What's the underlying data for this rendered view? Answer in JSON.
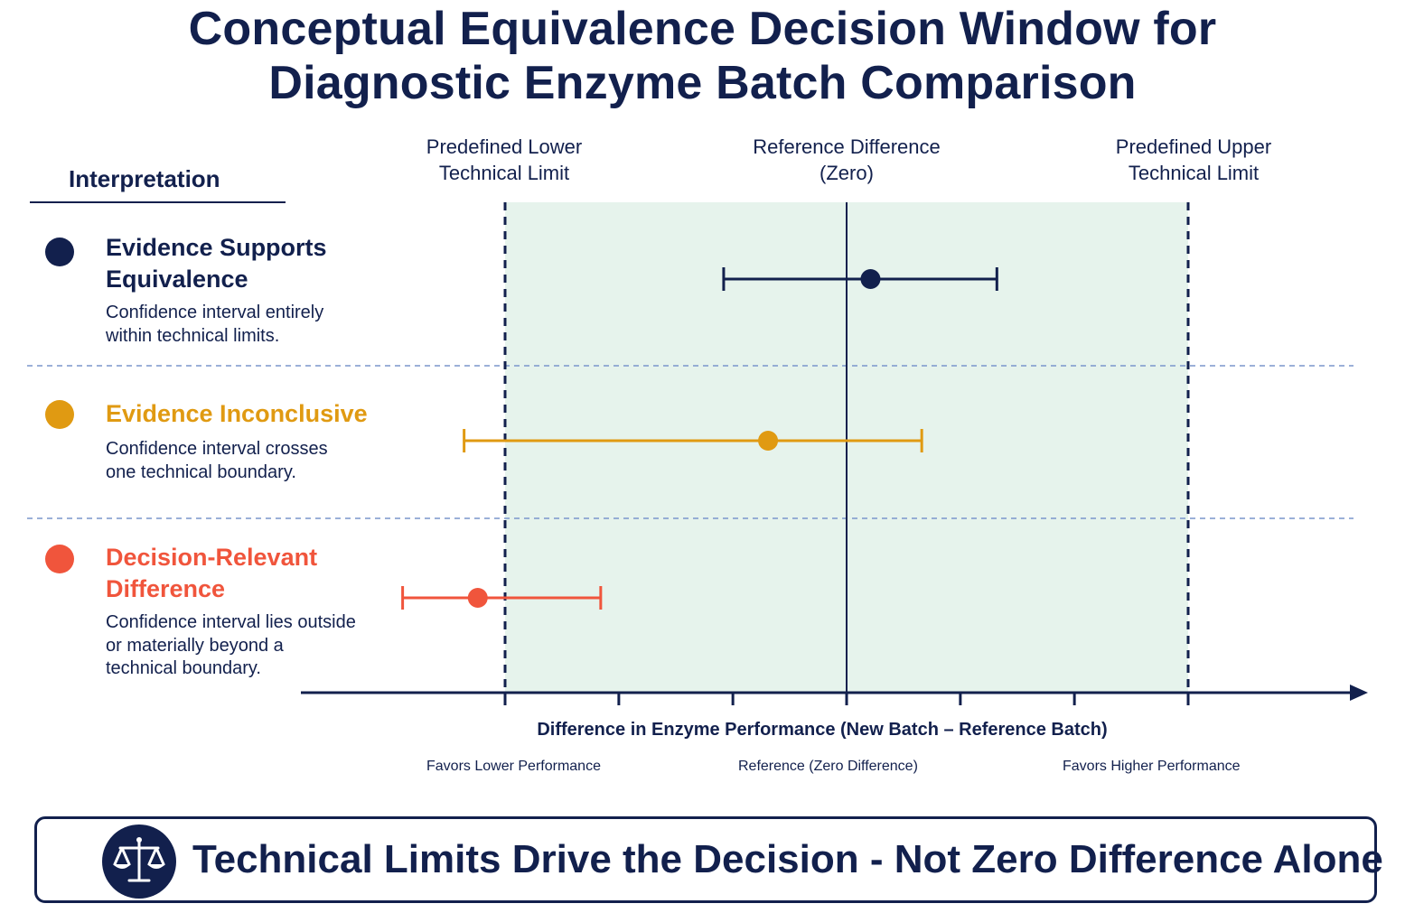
{
  "title_line1": "Conceptual Equivalence Decision Window for",
  "title_line2": "Diagnostic Enzyme Batch Comparison",
  "column_headers": {
    "lower_limit": [
      "Predefined Lower",
      "Technical Limit"
    ],
    "reference": [
      "Reference Difference",
      "(Zero)"
    ],
    "upper_limit": [
      "Predefined Upper",
      "Technical Limit"
    ]
  },
  "interpretation": {
    "heading": "Interpretation",
    "items": [
      {
        "title_lines": [
          "Evidence Supports",
          "Equivalence"
        ],
        "desc_lines": [
          "Confidence interval entirely",
          "within technical limits."
        ],
        "color": "#12204d"
      },
      {
        "title_lines": [
          "Evidence Inconclusive"
        ],
        "desc_lines": [
          "Confidence interval crosses",
          "one technical boundary."
        ],
        "color": "#e09a12"
      },
      {
        "title_lines": [
          "Decision-Relevant",
          "Difference"
        ],
        "desc_lines": [
          "Confidence interval lies outside",
          "or materially beyond a",
          "technical boundary."
        ],
        "color": "#f0553c"
      }
    ]
  },
  "axis": {
    "label": "Difference in Enzyme Performance (New Batch – Reference Batch)",
    "notes": [
      "Favors Lower Performance",
      "Reference (Zero Difference)",
      "Favors Higher Performance"
    ]
  },
  "banner": {
    "text": "Technical Limits Drive the Decision - Not Zero Difference Alone",
    "icon": "scales-icon"
  },
  "chart_data": {
    "type": "interval",
    "xlim": [
      -1.4,
      1.83
    ],
    "lower_limit": -1.0,
    "upper_limit": 1.0,
    "reference": 0,
    "ticks": [
      -1.0,
      -0.667,
      -0.333,
      0,
      0.333,
      0.667,
      1.0
    ],
    "grid": "dashed row separators",
    "shaded_region": [
      -1.0,
      1.0
    ],
    "series": [
      {
        "name": "Evidence Supports Equivalence",
        "point": 0.07,
        "lower": -0.36,
        "upper": 0.44,
        "color": "#12204d"
      },
      {
        "name": "Evidence Inconclusive",
        "point": -0.23,
        "lower": -1.12,
        "upper": 0.22,
        "color": "#e09a12"
      },
      {
        "name": "Decision-Relevant Difference",
        "point": -1.08,
        "lower": -1.3,
        "upper": -0.72,
        "color": "#f0553c"
      }
    ],
    "colors": {
      "band": "#e6f3ec",
      "axis": "#12204d",
      "separator": "#7a96cc"
    }
  }
}
